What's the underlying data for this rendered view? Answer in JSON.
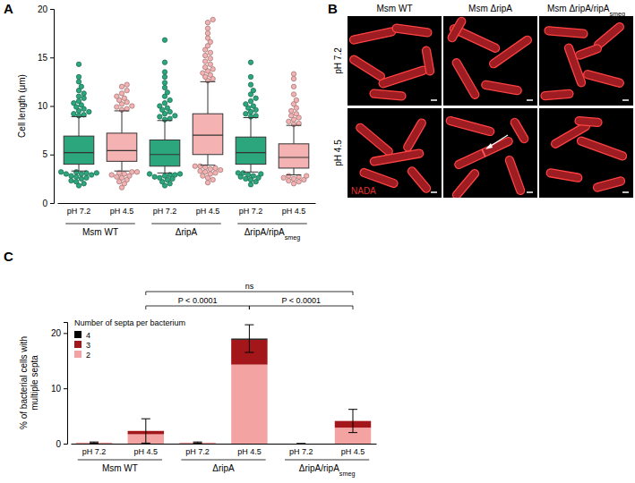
{
  "chart_data": [
    {
      "type": "box",
      "title": "A",
      "ylabel": "Cell length (μm)",
      "categories": [
        "pH 7.2",
        "pH 4.5",
        "pH 7.2",
        "pH 4.5",
        "pH 7.2",
        "pH 4.5"
      ],
      "group_labels": [
        "Msm WT",
        "ΔripA",
        "ΔripA/ripAsmeg"
      ],
      "colors": [
        "#2ca67d",
        "#f5b2b2",
        "#2ca67d",
        "#f5b2b2",
        "#2ca67d",
        "#f5b2b2"
      ],
      "ylim": [
        0,
        20
      ],
      "yticks": [
        0,
        5,
        10,
        15,
        20
      ],
      "boxes": [
        {
          "whislo": 3.3,
          "q1": 4.0,
          "med": 5.2,
          "q3": 6.9,
          "whishi": 8.9,
          "fliers": [
            1.8,
            2.0,
            2.2,
            2.3,
            2.5,
            2.6,
            2.7,
            2.8,
            2.9,
            3.0,
            3.0,
            3.1,
            3.1,
            3.2,
            3.2,
            9.0,
            9.1,
            9.2,
            9.4,
            9.5,
            9.7,
            9.9,
            10.1,
            10.3,
            10.5,
            10.8,
            11.0,
            11.3,
            11.6,
            12.0,
            12.5,
            13.0,
            14.3
          ]
        },
        {
          "whislo": 3.3,
          "q1": 4.3,
          "med": 5.4,
          "q3": 7.2,
          "whishi": 9.5,
          "fliers": [
            1.6,
            2.0,
            2.2,
            2.4,
            2.6,
            2.7,
            2.8,
            2.9,
            3.0,
            3.1,
            3.2,
            3.2,
            9.6,
            9.7,
            9.9,
            10.0,
            10.2,
            10.4,
            10.6,
            10.8,
            11.0,
            11.3,
            11.6,
            12.0,
            12.2
          ]
        },
        {
          "whislo": 3.1,
          "q1": 3.8,
          "med": 5.0,
          "q3": 6.5,
          "whishi": 8.5,
          "fliers": [
            1.8,
            2.0,
            2.2,
            2.4,
            2.5,
            2.6,
            2.7,
            2.8,
            2.9,
            2.9,
            3.0,
            3.0,
            8.6,
            8.7,
            8.9,
            9.0,
            9.2,
            9.4,
            9.6,
            9.8,
            10.0,
            10.3,
            10.6,
            11.0,
            11.4,
            11.9,
            12.4,
            13.0,
            13.5,
            14.5,
            16.8
          ]
        },
        {
          "whislo": 3.9,
          "q1": 5.0,
          "med": 7.0,
          "q3": 9.2,
          "whishi": 12.5,
          "fliers": [
            2.1,
            2.4,
            2.6,
            2.8,
            3.0,
            3.1,
            3.2,
            3.3,
            3.4,
            3.5,
            3.6,
            3.7,
            3.8,
            3.8,
            12.6,
            12.8,
            13.0,
            13.2,
            13.4,
            13.6,
            13.8,
            14.0,
            14.3,
            14.6,
            14.9,
            15.2,
            15.5,
            15.8,
            16.2,
            16.6,
            17.0,
            17.5,
            18.0,
            18.6,
            18.9
          ]
        },
        {
          "whislo": 3.2,
          "q1": 4.0,
          "med": 5.2,
          "q3": 6.8,
          "whishi": 8.8,
          "fliers": [
            1.9,
            2.2,
            2.4,
            2.5,
            2.6,
            2.7,
            2.8,
            2.9,
            3.0,
            3.1,
            3.1,
            8.9,
            9.0,
            9.2,
            9.4,
            9.6,
            9.8,
            10.0,
            10.2,
            10.5,
            10.8,
            11.2,
            11.6,
            12.2,
            13.0,
            14.5
          ]
        },
        {
          "whislo": 2.9,
          "q1": 3.6,
          "med": 4.7,
          "q3": 6.1,
          "whishi": 8.0,
          "fliers": [
            2.0,
            2.2,
            2.3,
            2.4,
            2.5,
            2.6,
            2.7,
            2.8,
            2.8,
            8.1,
            8.2,
            8.4,
            8.6,
            8.8,
            9.0,
            9.2,
            9.5,
            9.8,
            10.2,
            10.6,
            11.2,
            12.0,
            12.8,
            13.3
          ]
        }
      ]
    },
    {
      "type": "bar",
      "stacked": true,
      "title": "C",
      "ylabel": [
        "% of bacterial cells with",
        "multiple septa"
      ],
      "categories": [
        "pH 7.2",
        "pH 4.5",
        "pH 7.2",
        "pH 4.5",
        "pH 7.2",
        "pH 4.5"
      ],
      "group_labels": [
        "Msm WT",
        "ΔripA",
        "ΔripA/ripAsmeg"
      ],
      "legend": "upper left",
      "legend_title": "Number of septa per bacterium",
      "series": [
        {
          "name": "2",
          "color": "#f4a3a3",
          "values": [
            0.2,
            1.7,
            0.2,
            14.3,
            0,
            2.9
          ]
        },
        {
          "name": "3",
          "color": "#a3161a",
          "values": [
            0,
            0.6,
            0,
            4.5,
            0,
            1.2
          ]
        },
        {
          "name": "4",
          "color": "#000000",
          "values": [
            0,
            0,
            0,
            0.2,
            0,
            0
          ]
        }
      ],
      "errors": [
        0.1,
        2.2,
        0.1,
        2.5,
        0,
        2.1
      ],
      "ylim": [
        0,
        22
      ],
      "yticks": [
        0,
        10,
        20
      ],
      "annotations": [
        {
          "text": "P < 0.0001",
          "from": 1,
          "to": 3
        },
        {
          "text": "P < 0.0001",
          "from": 3,
          "to": 5
        },
        {
          "text": "ns",
          "from": 1,
          "to": 5
        }
      ]
    }
  ],
  "panel_b": {
    "label": "B",
    "columns": [
      "Msm WT",
      "Msm ΔripA",
      "Msm ΔripA/ripAsmeg"
    ],
    "rows": [
      "pH 7.2",
      "pH 4.5"
    ],
    "stain": "NADA"
  }
}
